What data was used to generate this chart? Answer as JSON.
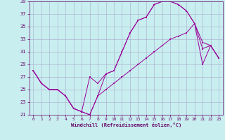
{
  "xlabel": "Windchill (Refroidissement éolien,°C)",
  "bg_color": "#c8eef0",
  "grid_color": "#aaaacc",
  "line_color": "#990099",
  "xlim": [
    -0.5,
    23.5
  ],
  "ylim": [
    21,
    39
  ],
  "yticks": [
    21,
    23,
    25,
    27,
    29,
    31,
    33,
    35,
    37,
    39
  ],
  "xticks": [
    0,
    1,
    2,
    3,
    4,
    5,
    6,
    7,
    8,
    9,
    10,
    11,
    12,
    13,
    14,
    15,
    16,
    17,
    18,
    19,
    20,
    21,
    22,
    23
  ],
  "curve1_x": [
    0,
    1,
    2,
    3,
    4,
    5,
    6,
    7,
    8,
    9,
    10,
    11,
    12,
    13,
    14,
    15,
    16,
    17,
    18,
    19,
    20,
    21,
    22,
    23
  ],
  "curve1_y": [
    28,
    26,
    25,
    25,
    24,
    22,
    21.5,
    21,
    24,
    27.5,
    28,
    31,
    34,
    36,
    36.5,
    38.5,
    39,
    39,
    38.5,
    37.5,
    35.5,
    29,
    32,
    30
  ],
  "curve2_x": [
    0,
    1,
    2,
    3,
    4,
    5,
    6,
    7,
    8,
    9,
    10,
    11,
    12,
    13,
    14,
    15,
    16,
    17,
    18,
    19,
    20,
    21,
    22,
    23
  ],
  "curve2_y": [
    28,
    26,
    25,
    25,
    24,
    22,
    21.5,
    27,
    26,
    27.5,
    28,
    31,
    34,
    36,
    36.5,
    38.5,
    39,
    39,
    38.5,
    37.5,
    35.5,
    32.5,
    32,
    30
  ],
  "curve3_x": [
    0,
    1,
    2,
    3,
    4,
    5,
    6,
    7,
    8,
    9,
    10,
    11,
    12,
    13,
    14,
    15,
    16,
    17,
    18,
    19,
    20,
    21,
    22,
    23
  ],
  "curve3_y": [
    28,
    26,
    25,
    25,
    24,
    22,
    21.5,
    21,
    24,
    25,
    26,
    27,
    28,
    29,
    30,
    31,
    32,
    33,
    33.5,
    34,
    35.5,
    31.5,
    32,
    30
  ]
}
